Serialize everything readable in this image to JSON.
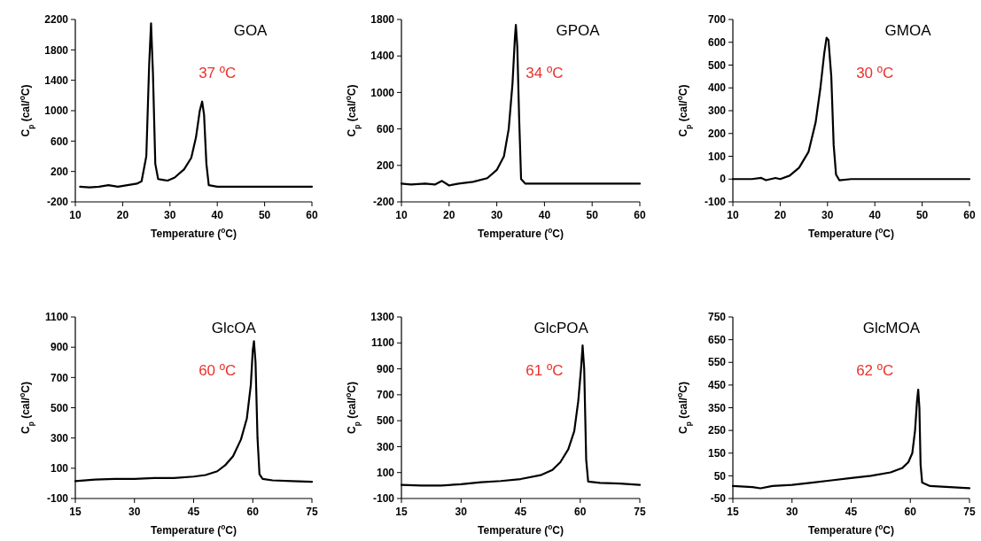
{
  "chart_data": [
    {
      "type": "line",
      "title": "GOA",
      "xlabel": "Temperature ($^{o}$C)",
      "ylabel": "C$_{p}$ (cal/$^{o}$C)",
      "annotations": [
        "37 ºC"
      ],
      "xlim": [
        10,
        60
      ],
      "xticks": [
        10,
        20,
        30,
        40,
        50,
        60
      ],
      "ylim": [
        -200,
        2200
      ],
      "yticks": [
        -200,
        200,
        600,
        1000,
        1400,
        1800,
        2200
      ],
      "series": [
        {
          "color": "#000000",
          "x": [
            11,
            13,
            15,
            17,
            19,
            21,
            23,
            24,
            25,
            25.6,
            26,
            26.4,
            26.9,
            27.5,
            28.5,
            29.5,
            31,
            33,
            34.5,
            35.5,
            36.3,
            36.8,
            37.2,
            37.7,
            38.2,
            40,
            45,
            50,
            55,
            60
          ],
          "values": [
            0,
            -10,
            0,
            20,
            0,
            20,
            40,
            70,
            400,
            1600,
            2150,
            1500,
            300,
            100,
            90,
            80,
            120,
            230,
            380,
            650,
            1000,
            1120,
            950,
            300,
            20,
            0,
            0,
            0,
            0,
            0
          ]
        }
      ]
    },
    {
      "type": "line",
      "title": "GPOA",
      "xlabel": "Temperature ($^{o}$C)",
      "ylabel": "C$_{p}$ (cal/$^{o}$C)",
      "annotations": [
        "34 ºC"
      ],
      "xlim": [
        10,
        60
      ],
      "xticks": [
        10,
        20,
        30,
        40,
        50,
        60
      ],
      "ylim": [
        -200,
        1800
      ],
      "yticks": [
        -200,
        200,
        600,
        1000,
        1400,
        1800
      ],
      "series": [
        {
          "color": "#000000",
          "x": [
            10,
            12,
            15,
            17,
            18.5,
            20,
            22,
            25,
            28,
            30,
            31.5,
            32.5,
            33.3,
            33.8,
            34,
            34.3,
            34.7,
            35.1,
            36,
            40,
            45,
            50,
            55,
            60
          ],
          "values": [
            0,
            -10,
            0,
            -10,
            30,
            -20,
            0,
            20,
            60,
            150,
            300,
            600,
            1100,
            1600,
            1740,
            1500,
            700,
            50,
            0,
            0,
            0,
            0,
            0,
            0
          ]
        }
      ]
    },
    {
      "type": "line",
      "title": "GMOA",
      "xlabel": "Temperature ($^{o}$C)",
      "ylabel": "C$_{p}$ (cal/$^{o}$C)",
      "annotations": [
        "30 ºC"
      ],
      "xlim": [
        10,
        60
      ],
      "xticks": [
        10,
        20,
        30,
        40,
        50,
        60
      ],
      "ylim": [
        -100,
        700
      ],
      "yticks": [
        -100,
        0,
        100,
        200,
        300,
        400,
        500,
        600,
        700
      ],
      "series": [
        {
          "color": "#000000",
          "x": [
            10,
            14,
            16,
            17,
            19,
            20,
            22,
            24,
            26,
            27.5,
            28.5,
            29.3,
            29.8,
            30.2,
            30.8,
            31.3,
            31.8,
            32.5,
            35,
            40,
            50,
            60
          ],
          "values": [
            0,
            0,
            5,
            -5,
            5,
            0,
            15,
            50,
            120,
            250,
            400,
            550,
            620,
            610,
            450,
            150,
            20,
            -5,
            0,
            0,
            0,
            0
          ]
        }
      ]
    },
    {
      "type": "line",
      "title": "GlcOA",
      "xlabel": "Temperature ($^{o}$C)",
      "ylabel": "C$_{p}$ (cal/$^{o}$C)",
      "annotations": [
        "60 ºC"
      ],
      "xlim": [
        15,
        75
      ],
      "xticks": [
        15,
        30,
        45,
        60,
        75
      ],
      "ylim": [
        -100,
        1100
      ],
      "yticks": [
        -100,
        100,
        300,
        500,
        700,
        900,
        1100
      ],
      "series": [
        {
          "color": "#000000",
          "x": [
            15,
            20,
            25,
            30,
            35,
            40,
            45,
            48,
            51,
            53,
            55,
            57,
            58.5,
            59.5,
            60,
            60.3,
            60.7,
            61.2,
            61.7,
            62.5,
            65,
            70,
            75
          ],
          "values": [
            15,
            25,
            30,
            30,
            35,
            35,
            45,
            55,
            80,
            120,
            180,
            290,
            430,
            650,
            880,
            940,
            800,
            300,
            60,
            30,
            20,
            15,
            10
          ]
        }
      ]
    },
    {
      "type": "line",
      "title": "GlcPOA",
      "xlabel": "Temperature ($^{o}$C)",
      "ylabel": "C$_{p}$ (cal/$^{o}$C)",
      "annotations": [
        "61 ºC"
      ],
      "xlim": [
        15,
        75
      ],
      "xticks": [
        15,
        30,
        45,
        60,
        75
      ],
      "ylim": [
        -100,
        1300
      ],
      "yticks": [
        -100,
        100,
        300,
        500,
        700,
        900,
        1100,
        1300
      ],
      "series": [
        {
          "color": "#000000",
          "x": [
            15,
            20,
            25,
            30,
            35,
            40,
            45,
            50,
            53,
            55,
            57,
            58.5,
            59.5,
            60.2,
            60.6,
            61,
            61.5,
            62,
            65,
            70,
            75
          ],
          "values": [
            5,
            0,
            0,
            10,
            25,
            35,
            50,
            80,
            120,
            180,
            280,
            420,
            650,
            900,
            1080,
            900,
            200,
            30,
            20,
            15,
            5
          ]
        }
      ]
    },
    {
      "type": "line",
      "title": "GlcMOA",
      "xlabel": "Temperature ($^{o}$C)",
      "ylabel": "C$_{p}$ (cal/$^{o}$C)",
      "annotations": [
        "62 ºC"
      ],
      "xlim": [
        15,
        75
      ],
      "xticks": [
        15,
        30,
        45,
        60,
        75
      ],
      "ylim": [
        -50,
        750
      ],
      "yticks": [
        -50,
        50,
        150,
        250,
        350,
        450,
        550,
        650,
        750
      ],
      "series": [
        {
          "color": "#000000",
          "x": [
            15,
            20,
            22,
            25,
            30,
            35,
            40,
            45,
            50,
            55,
            58,
            59.5,
            60.5,
            61.2,
            61.7,
            62,
            62.3,
            62.6,
            63,
            65,
            70,
            75
          ],
          "values": [
            5,
            0,
            -5,
            5,
            10,
            20,
            30,
            40,
            50,
            65,
            85,
            110,
            150,
            250,
            380,
            430,
            350,
            100,
            20,
            5,
            0,
            -5
          ]
        }
      ]
    }
  ]
}
